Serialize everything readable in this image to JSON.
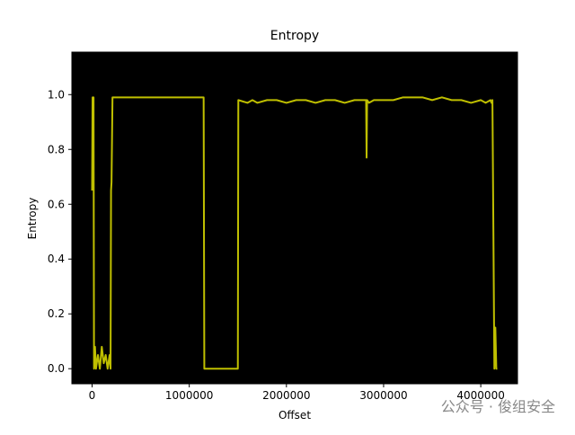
{
  "chart_data": {
    "type": "line",
    "title": "Entropy",
    "x_label": "Offset",
    "y_label": "Entropy",
    "background": "#000000",
    "xlim": [
      -208000,
      4378000
    ],
    "ylim": [
      -0.055,
      1.155
    ],
    "xticks": [
      0,
      1000000,
      2000000,
      3000000,
      4000000
    ],
    "yticks": [
      {
        "value": 0,
        "label": "0.0"
      },
      {
        "value": 0.2,
        "label": "0.2"
      },
      {
        "value": 0.4,
        "label": "0.4"
      },
      {
        "value": 0.6,
        "label": "0.6"
      },
      {
        "value": 0.8,
        "label": "0.8"
      },
      {
        "value": 1.0,
        "label": "1.0"
      }
    ],
    "x": [
      0,
      5000,
      15000,
      20000,
      30000,
      40000,
      60000,
      80000,
      100000,
      120000,
      140000,
      160000,
      180000,
      190000,
      195000,
      200000,
      210000,
      400000,
      700000,
      1000000,
      1148000,
      1155000,
      1500000,
      1505000,
      1600000,
      1650000,
      1700000,
      1800000,
      1900000,
      2000000,
      2100000,
      2200000,
      2300000,
      2400000,
      2500000,
      2600000,
      2700000,
      2800000,
      2820000,
      2825000,
      2830000,
      2850000,
      2900000,
      3000000,
      3100000,
      3200000,
      3300000,
      3400000,
      3500000,
      3600000,
      3700000,
      3800000,
      3900000,
      4000000,
      4050000,
      4100000,
      4110000,
      4120000,
      4130000,
      4140000,
      4150000,
      4160000,
      4170000
    ],
    "series": [
      {
        "name": "Entropy",
        "color": "#bfbf00",
        "values": [
          0.65,
          0.99,
          0.99,
          0.0,
          0.08,
          0.0,
          0.05,
          0.0,
          0.08,
          0.02,
          0.05,
          0.0,
          0.05,
          0.0,
          0.65,
          0.68,
          0.99,
          0.99,
          0.99,
          0.99,
          0.99,
          0.0,
          0.0,
          0.98,
          0.97,
          0.98,
          0.97,
          0.98,
          0.98,
          0.97,
          0.98,
          0.98,
          0.97,
          0.98,
          0.98,
          0.97,
          0.98,
          0.98,
          0.98,
          0.77,
          0.98,
          0.97,
          0.98,
          0.98,
          0.98,
          0.99,
          0.99,
          0.99,
          0.98,
          0.99,
          0.98,
          0.98,
          0.97,
          0.98,
          0.97,
          0.98,
          0.97,
          0.98,
          0.5,
          0.0,
          0.15,
          0.0,
          0.0
        ]
      }
    ]
  },
  "watermark": "公众号 · 俊组安全"
}
